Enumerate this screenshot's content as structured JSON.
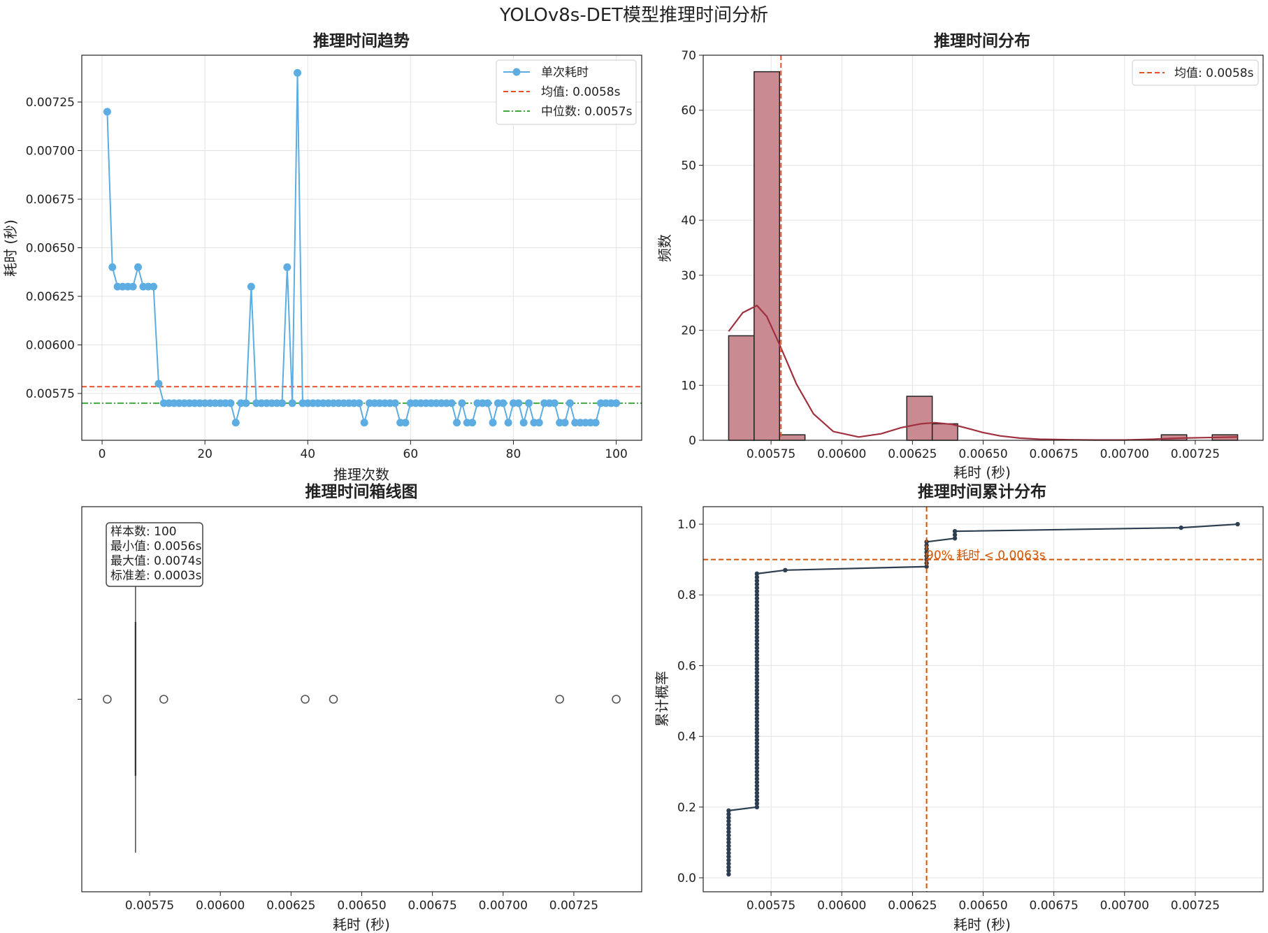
{
  "figure": {
    "title": "YOLOv8s-DET模型推理时间分析"
  },
  "colors": {
    "trend": "#5DADE2",
    "mean": "#E8502A",
    "median": "#3DAA3D",
    "hist_fill": "#C98A92",
    "kde": "#A0303E",
    "box": "#555555",
    "cdf": "#2C3E50",
    "p90": "#D35400",
    "grid": "#E3E3E3"
  },
  "chart_data": [
    {
      "id": "trend",
      "type": "line",
      "title": "推理时间趋势",
      "xlabel": "推理次数",
      "ylabel": "耗时 (秒)",
      "xlim": [
        -3.95,
        104.95
      ],
      "ylim": [
        0.005509,
        0.007491
      ],
      "xticks": [
        0,
        20,
        40,
        60,
        80,
        100
      ],
      "yticks": [
        0.00575,
        0.006,
        0.00625,
        0.0065,
        0.00675,
        0.007,
        0.00725
      ],
      "yticklabels": [
        "0.00575",
        "0.00600",
        "0.00625",
        "0.00650",
        "0.00675",
        "0.00700",
        "0.00725"
      ],
      "grid": true,
      "legend": {
        "position": "upper right",
        "entries": [
          "单次耗时",
          "均值: 0.0058s",
          "中位数: 0.0057s"
        ]
      },
      "series": [
        {
          "name": "单次耗时",
          "x": [
            1,
            2,
            3,
            4,
            5,
            6,
            7,
            8,
            9,
            10,
            11,
            12,
            13,
            14,
            15,
            16,
            17,
            18,
            19,
            20,
            21,
            22,
            23,
            24,
            25,
            26,
            27,
            28,
            29,
            30,
            31,
            32,
            33,
            34,
            35,
            36,
            37,
            38,
            39,
            40,
            41,
            42,
            43,
            44,
            45,
            46,
            47,
            48,
            49,
            50,
            51,
            52,
            53,
            54,
            55,
            56,
            57,
            58,
            59,
            60,
            61,
            62,
            63,
            64,
            65,
            66,
            67,
            68,
            69,
            70,
            71,
            72,
            73,
            74,
            75,
            76,
            77,
            78,
            79,
            80,
            81,
            82,
            83,
            84,
            85,
            86,
            87,
            88,
            89,
            90,
            91,
            92,
            93,
            94,
            95,
            96,
            97,
            98,
            99,
            100
          ],
          "y": [
            0.0072,
            0.0064,
            0.0063,
            0.0063,
            0.0063,
            0.0063,
            0.0064,
            0.0063,
            0.0063,
            0.0063,
            0.0058,
            0.0057,
            0.0057,
            0.0057,
            0.0057,
            0.0057,
            0.0057,
            0.0057,
            0.0057,
            0.0057,
            0.0057,
            0.0057,
            0.0057,
            0.0057,
            0.0057,
            0.0056,
            0.0057,
            0.0057,
            0.0063,
            0.0057,
            0.0057,
            0.0057,
            0.0057,
            0.0057,
            0.0057,
            0.0064,
            0.0057,
            0.0074,
            0.0057,
            0.0057,
            0.0057,
            0.0057,
            0.0057,
            0.0057,
            0.0057,
            0.0057,
            0.0057,
            0.0057,
            0.0057,
            0.0057,
            0.0056,
            0.0057,
            0.0057,
            0.0057,
            0.0057,
            0.0057,
            0.0057,
            0.0056,
            0.0056,
            0.0057,
            0.0057,
            0.0057,
            0.0057,
            0.0057,
            0.0057,
            0.0057,
            0.0057,
            0.0057,
            0.0056,
            0.0057,
            0.0056,
            0.0056,
            0.0057,
            0.0057,
            0.0057,
            0.0056,
            0.0057,
            0.0057,
            0.0056,
            0.0057,
            0.0057,
            0.0056,
            0.0057,
            0.0056,
            0.0056,
            0.0057,
            0.0057,
            0.0057,
            0.0056,
            0.0056,
            0.0057,
            0.0056,
            0.0056,
            0.0056,
            0.0056,
            0.0056,
            0.0057,
            0.0057,
            0.0057,
            0.0057
          ]
        }
      ],
      "hlines": [
        {
          "name": "均值: 0.0058s",
          "y": 0.005785,
          "style": "dashed"
        },
        {
          "name": "中位数: 0.0057s",
          "y": 0.0057,
          "style": "dashdot"
        }
      ]
    },
    {
      "id": "hist",
      "type": "bar",
      "title": "推理时间分布",
      "xlabel": "耗时 (秒)",
      "ylabel": "频数",
      "xlim": [
        0.00551,
        0.00749
      ],
      "ylim": [
        0,
        70
      ],
      "xticks": [
        0.00575,
        0.006,
        0.00625,
        0.0065,
        0.00675,
        0.007,
        0.00725
      ],
      "xticklabels": [
        "0.00575",
        "0.00600",
        "0.00625",
        "0.00650",
        "0.00675",
        "0.00700",
        "0.00725"
      ],
      "yticks": [
        0,
        10,
        20,
        30,
        40,
        50,
        60,
        70
      ],
      "grid": true,
      "legend": {
        "position": "upper right",
        "entries": [
          "均值: 0.0058s"
        ]
      },
      "bin_edges": [
        0.0056,
        0.00569,
        0.00578,
        0.00587,
        0.00596,
        0.00605,
        0.00614,
        0.00623,
        0.00632,
        0.00641,
        0.0065,
        0.00659,
        0.00668,
        0.00677,
        0.00686,
        0.00695,
        0.00704,
        0.00713,
        0.00722,
        0.00731,
        0.0074
      ],
      "counts": [
        19,
        67,
        1,
        0,
        0,
        0,
        0,
        8,
        3,
        0,
        0,
        0,
        0,
        0,
        0,
        0,
        0,
        1,
        0,
        1
      ],
      "kde": {
        "x": [
          0.0056,
          0.00565,
          0.0057,
          0.005735,
          0.00578,
          0.00584,
          0.0059,
          0.00597,
          0.00606,
          0.00614,
          0.00621,
          0.00628,
          0.00633,
          0.00639,
          0.00645,
          0.0065,
          0.00656,
          0.00663,
          0.0067,
          0.0068,
          0.0069,
          0.007,
          0.0071,
          0.0072,
          0.0073,
          0.0074
        ],
        "y": [
          19.8,
          23.2,
          24.5,
          22.5,
          17.4,
          10.2,
          4.8,
          1.6,
          0.6,
          1.2,
          2.3,
          3.0,
          3.2,
          2.9,
          2.1,
          1.4,
          0.8,
          0.4,
          0.2,
          0.1,
          0.05,
          0.05,
          0.2,
          0.4,
          0.5,
          0.6
        ]
      },
      "vlines": [
        {
          "name": "均值: 0.0058s",
          "x": 0.005785,
          "style": "dashed"
        }
      ]
    },
    {
      "id": "box",
      "type": "box",
      "title": "推理时间箱线图",
      "xlabel": "耗时 (秒)",
      "xlim": [
        0.00551,
        0.00749
      ],
      "xticks": [
        0.00575,
        0.006,
        0.00625,
        0.0065,
        0.00675,
        0.007,
        0.00725
      ],
      "xticklabels": [
        "0.00575",
        "0.00600",
        "0.00625",
        "0.00650",
        "0.00675",
        "0.00700",
        "0.00725"
      ],
      "grid": false,
      "median": 0.0057,
      "q1": 0.0057,
      "q3": 0.0057,
      "whisker_low": 0.0057,
      "whisker_high": 0.0057,
      "outliers": [
        0.0056,
        0.0058,
        0.0063,
        0.0064,
        0.0072,
        0.0074
      ],
      "annotation": [
        "样本数: 100",
        "最小值: 0.0056s",
        "最大值: 0.0074s",
        "标准差: 0.0003s"
      ]
    },
    {
      "id": "cdf",
      "type": "line",
      "title": "推理时间累计分布",
      "xlabel": "耗时 (秒)",
      "ylabel": "累计概率",
      "xlim": [
        0.00551,
        0.00749
      ],
      "ylim": [
        -0.0395,
        1.0495
      ],
      "xticks": [
        0.00575,
        0.006,
        0.00625,
        0.0065,
        0.00675,
        0.007,
        0.00725
      ],
      "xticklabels": [
        "0.00575",
        "0.00600",
        "0.00625",
        "0.00650",
        "0.00675",
        "0.00700",
        "0.00725"
      ],
      "yticks": [
        0.0,
        0.2,
        0.4,
        0.6,
        0.8,
        1.0
      ],
      "yticklabels": [
        "0.0",
        "0.2",
        "0.4",
        "0.6",
        "0.8",
        "1.0"
      ],
      "grid": true,
      "counts_by_value": [
        {
          "x": 0.0056,
          "n": 19
        },
        {
          "x": 0.0057,
          "n": 67
        },
        {
          "x": 0.0058,
          "n": 1
        },
        {
          "x": 0.0063,
          "n": 8
        },
        {
          "x": 0.0064,
          "n": 3
        },
        {
          "x": 0.0072,
          "n": 1
        },
        {
          "x": 0.0074,
          "n": 1
        }
      ],
      "hline": {
        "y": 0.9
      },
      "vline": {
        "x": 0.0063
      },
      "annotation": "90% 耗时 < 0.0063s"
    }
  ]
}
